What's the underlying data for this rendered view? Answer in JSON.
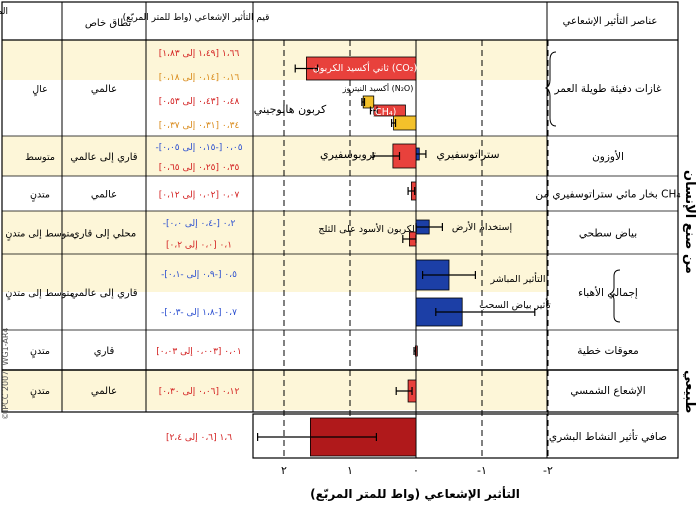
{
  "credit": "©IPCC 2007: WG1-AR4",
  "headers": {
    "level": "المستوى المقيَّم للفهم العلمي",
    "scale": "نطاق خاص",
    "values": "قيم التأثير الإشعاعي (واط للمتر المربّع)",
    "components": "عناصر التأثير الإشعاعي"
  },
  "side_labels": {
    "anthropogenic": "من صنع الإنسان",
    "natural": "طبيعي"
  },
  "colors": {
    "red_bar": "#e8413c",
    "dark_red": "#b0191b",
    "yellow": "#f3c12a",
    "blue": "#1c3fa6",
    "cream": "#fdf6d8",
    "red_text": "#d32020",
    "blue_text": "#2b4fd0",
    "orange_text": "#d98a1a"
  },
  "chart_data": {
    "type": "bar",
    "orientation": "horizontal",
    "xlabel": "التأثير الإشعاعي (واط للمتر المربّع)",
    "xlim": [
      -2,
      2
    ],
    "xticks": [
      -2,
      -1,
      0,
      1,
      2
    ],
    "xtick_labels": [
      "-۲",
      "-۱",
      "۰",
      "۱",
      "۲"
    ],
    "grid": "dashed vertical lines at -2, -1, 1, 2",
    "rows": [
      {
        "component": "غازات دفيئة طويلة العمر",
        "scale": "عالمي",
        "level": "عالٍ",
        "bars": [
          {
            "label": "ثاني أكسيد الكربون (CO₂)",
            "base": 0,
            "value": 1.66,
            "low": 1.49,
            "high": 1.83,
            "color": "red",
            "value_text": "١،٦٦ [١،٤٩ إلى ١،٨٣]"
          },
          {
            "label": "أكسيد النيتروز (N₂O)",
            "base": 0.64,
            "value": 0.16,
            "low": 0.14,
            "high": 0.18,
            "color": "yellow",
            "value_text": "٠،١٦ [٠،١٤ إلى ٠،١٨]"
          },
          {
            "label": "ميثان (CH₄)",
            "base": 0.16,
            "value": 0.48,
            "low": 0.43,
            "high": 0.53,
            "color": "red",
            "value_text": "٠،٤٨ [٠،٤٣ إلى ٠،٥٣]"
          },
          {
            "label": "كربون هالوجيني",
            "base": 0,
            "value": 0.34,
            "low": 0.31,
            "high": 0.37,
            "color": "yellow",
            "value_text": "٠،٣٤ [٠،٣١ إلى ٠،٣٧]"
          }
        ]
      },
      {
        "component": "الأوزون",
        "scale": "قاري إلى عالمي",
        "level": "متوسط",
        "bars": [
          {
            "label": "ستراتوسفيري",
            "base": 0,
            "value": -0.05,
            "low": -0.15,
            "high": 0.05,
            "color": "blue",
            "value_text": "-٠،٠٥ [-٠،١٥ إلى ٠،٠٥]"
          },
          {
            "label": "تروبوسفيري",
            "base": 0,
            "value": 0.35,
            "low": 0.25,
            "high": 0.65,
            "color": "red",
            "value_text": "٠،٣٥ [٠،٢٥ إلى ٠،٦٥]"
          }
        ]
      },
      {
        "component": "بخار مائي ستراتوسفيري من CH₄",
        "scale": "عالمي",
        "level": "متدنٍ",
        "bars": [
          {
            "label": "",
            "base": 0,
            "value": 0.07,
            "low": 0.02,
            "high": 0.12,
            "color": "red",
            "value_text": "٠،٠٧ [٠،٠٢ إلى ٠،١٢]"
          }
        ]
      },
      {
        "component": "بياض سطحي",
        "scale": "محلي إلى قاري",
        "level": "متوسط إلى متدنٍ",
        "bars": [
          {
            "label": "إستخدام الأرض",
            "base": 0,
            "value": -0.2,
            "low": -0.4,
            "high": 0.0,
            "color": "blue",
            "value_text": "-٠،٢ [-٠،٤ إلى ٠،٠]"
          },
          {
            "label": "الكربون الأسود على الثلج",
            "base": 0,
            "value": 0.1,
            "low": 0.0,
            "high": 0.2,
            "color": "red",
            "value_text": "٠،١ [٠،٠ إلى ٠،٢]"
          }
        ]
      },
      {
        "component": "إجمالي الأهباء",
        "scale": "قاري إلى عالمي",
        "level": "متوسط إلى متدنٍ",
        "bars": [
          {
            "label": "التأثير المباشر",
            "base": 0,
            "value": -0.5,
            "low": -0.9,
            "high": -0.1,
            "color": "blue",
            "value_text": "-٠،٥ [-٠،٩ إلى -٠،١]"
          },
          {
            "label": "تأثير بياض السحب",
            "base": 0,
            "value": -0.7,
            "low": -1.8,
            "high": -0.3,
            "color": "blue",
            "value_text": "-٠،٧ [-١،٨ إلى -٠،٣]"
          }
        ]
      },
      {
        "component": "معوقات خطية",
        "scale": "قاري",
        "level": "متدنٍ",
        "bars": [
          {
            "label": "",
            "base": 0,
            "value": 0.01,
            "low": 0.003,
            "high": 0.03,
            "color": "red",
            "value_text": "٠،٠١ [٠،٠٠٣ إلى ٠،٠٣]"
          }
        ]
      },
      {
        "component": "الإشعاع الشمسي",
        "scale": "عالمي",
        "level": "متدنٍ",
        "bars": [
          {
            "label": "",
            "base": 0,
            "value": 0.12,
            "low": 0.06,
            "high": 0.3,
            "color": "red",
            "value_text": "٠،١٢ [٠،٠٦ إلى ٠،٣٠]"
          }
        ]
      },
      {
        "component": "صافي تأثير النشاط البشري",
        "scale": "",
        "level": "",
        "bars": [
          {
            "label": "",
            "base": 0,
            "value": 1.6,
            "low": 0.6,
            "high": 2.4,
            "color": "dark_red",
            "value_text": "١،٦ [٠،٦ إلى ٢،٤]"
          }
        ]
      }
    ]
  }
}
